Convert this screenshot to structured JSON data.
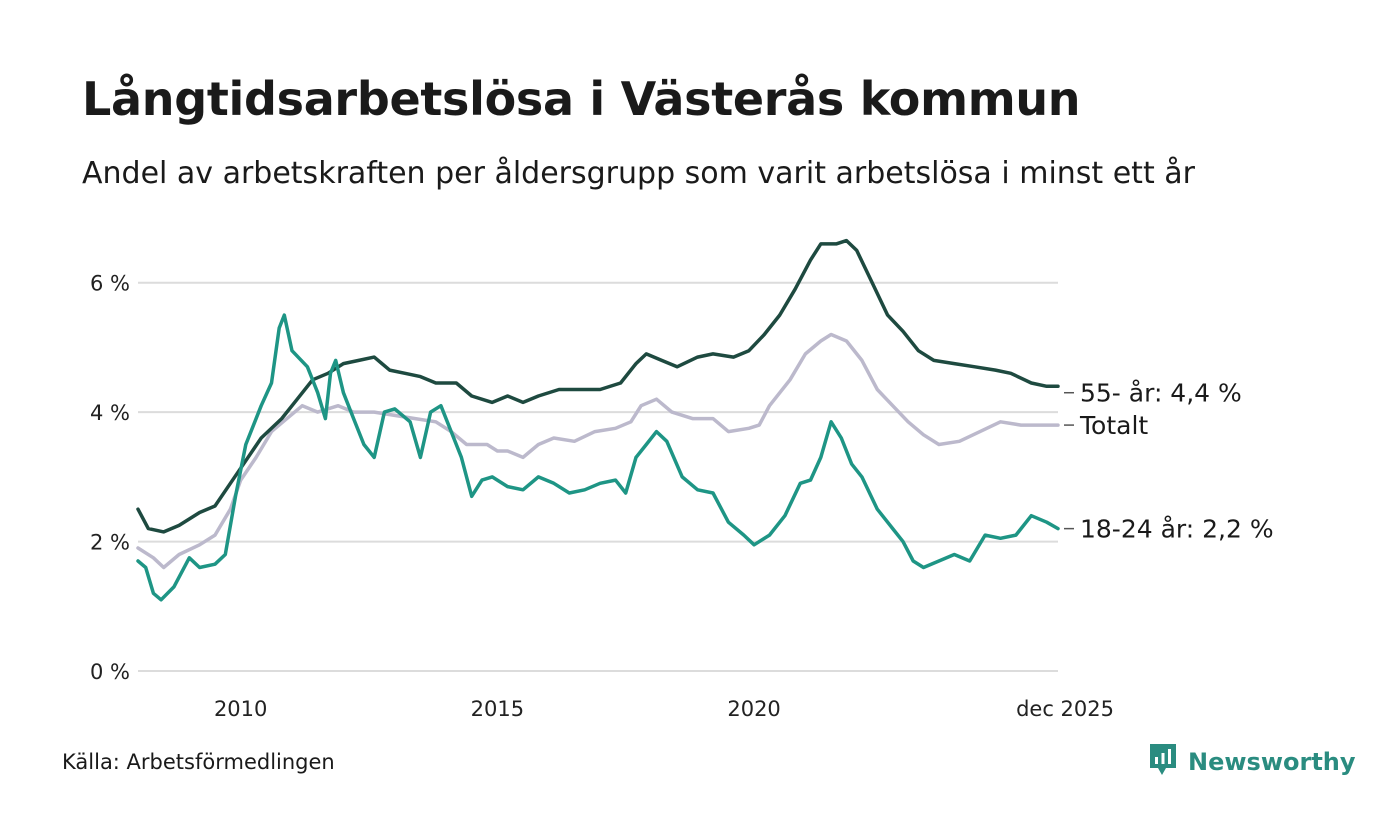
{
  "title": "Långtidsarbetslösa i Västerås kommun",
  "subtitle": "Andel av arbetskraften per åldersgrupp som varit arbetslösa i minst ett år",
  "source": "Källa: Arbetsförmedlingen",
  "brand": {
    "name": "Newsworthy",
    "icon": "newsworthy-logo-icon",
    "color": "#2a8c80"
  },
  "chart_data": {
    "type": "line",
    "title": "Långtidsarbetslösa i Västerås kommun",
    "xlabel": "",
    "ylabel": "",
    "ylim": [
      0,
      7
    ],
    "xlim": [
      2008.0,
      2025.92
    ],
    "y_ticks": [
      {
        "value": 0,
        "label": "0 %"
      },
      {
        "value": 2,
        "label": "2 %"
      },
      {
        "value": 4,
        "label": "4 %"
      },
      {
        "value": 6,
        "label": "6 %"
      }
    ],
    "x_ticks": [
      {
        "value": 2010,
        "label": "2010"
      },
      {
        "value": 2015,
        "label": "2015"
      },
      {
        "value": 2020,
        "label": "2020"
      },
      {
        "value": 2025.92,
        "label": "dec 2025"
      }
    ],
    "grid": true,
    "series": [
      {
        "name": "Totalt",
        "end_label": "Totalt",
        "color": "#bcb9cc",
        "points": [
          [
            2008.0,
            1.9
          ],
          [
            2008.3,
            1.75
          ],
          [
            2008.5,
            1.6
          ],
          [
            2008.8,
            1.8
          ],
          [
            2009.2,
            1.95
          ],
          [
            2009.5,
            2.1
          ],
          [
            2009.8,
            2.5
          ],
          [
            2010.0,
            2.95
          ],
          [
            2010.3,
            3.3
          ],
          [
            2010.6,
            3.7
          ],
          [
            2010.9,
            3.9
          ],
          [
            2011.2,
            4.1
          ],
          [
            2011.5,
            4.0
          ],
          [
            2011.9,
            4.1
          ],
          [
            2012.2,
            4.0
          ],
          [
            2012.6,
            4.0
          ],
          [
            2013.0,
            3.95
          ],
          [
            2013.4,
            3.9
          ],
          [
            2013.8,
            3.85
          ],
          [
            2014.1,
            3.7
          ],
          [
            2014.4,
            3.5
          ],
          [
            2014.8,
            3.5
          ],
          [
            2015.0,
            3.4
          ],
          [
            2015.2,
            3.4
          ],
          [
            2015.5,
            3.3
          ],
          [
            2015.8,
            3.5
          ],
          [
            2016.1,
            3.6
          ],
          [
            2016.5,
            3.55
          ],
          [
            2016.9,
            3.7
          ],
          [
            2017.3,
            3.75
          ],
          [
            2017.6,
            3.85
          ],
          [
            2017.8,
            4.1
          ],
          [
            2018.1,
            4.2
          ],
          [
            2018.4,
            4.0
          ],
          [
            2018.8,
            3.9
          ],
          [
            2019.2,
            3.9
          ],
          [
            2019.5,
            3.7
          ],
          [
            2019.9,
            3.75
          ],
          [
            2020.1,
            3.8
          ],
          [
            2020.3,
            4.1
          ],
          [
            2020.7,
            4.5
          ],
          [
            2021.0,
            4.9
          ],
          [
            2021.3,
            5.1
          ],
          [
            2021.5,
            5.2
          ],
          [
            2021.8,
            5.1
          ],
          [
            2022.1,
            4.8
          ],
          [
            2022.4,
            4.35
          ],
          [
            2022.7,
            4.1
          ],
          [
            2023.0,
            3.85
          ],
          [
            2023.3,
            3.65
          ],
          [
            2023.6,
            3.5
          ],
          [
            2024.0,
            3.55
          ],
          [
            2024.4,
            3.7
          ],
          [
            2024.8,
            3.85
          ],
          [
            2025.2,
            3.8
          ],
          [
            2025.5,
            3.8
          ],
          [
            2025.92,
            3.8
          ]
        ]
      },
      {
        "name": "55- år",
        "end_label": "55- år: 4,4 %",
        "color": "#1e4a40",
        "points": [
          [
            2008.0,
            2.5
          ],
          [
            2008.2,
            2.2
          ],
          [
            2008.5,
            2.15
          ],
          [
            2008.8,
            2.25
          ],
          [
            2009.2,
            2.45
          ],
          [
            2009.5,
            2.55
          ],
          [
            2009.8,
            2.9
          ],
          [
            2010.1,
            3.25
          ],
          [
            2010.4,
            3.6
          ],
          [
            2010.8,
            3.9
          ],
          [
            2011.1,
            4.2
          ],
          [
            2011.4,
            4.5
          ],
          [
            2011.7,
            4.6
          ],
          [
            2012.0,
            4.75
          ],
          [
            2012.3,
            4.8
          ],
          [
            2012.6,
            4.85
          ],
          [
            2012.9,
            4.65
          ],
          [
            2013.2,
            4.6
          ],
          [
            2013.5,
            4.55
          ],
          [
            2013.8,
            4.45
          ],
          [
            2014.2,
            4.45
          ],
          [
            2014.5,
            4.25
          ],
          [
            2014.9,
            4.15
          ],
          [
            2015.2,
            4.25
          ],
          [
            2015.5,
            4.15
          ],
          [
            2015.8,
            4.25
          ],
          [
            2016.2,
            4.35
          ],
          [
            2016.6,
            4.35
          ],
          [
            2017.0,
            4.35
          ],
          [
            2017.4,
            4.45
          ],
          [
            2017.7,
            4.75
          ],
          [
            2017.9,
            4.9
          ],
          [
            2018.2,
            4.8
          ],
          [
            2018.5,
            4.7
          ],
          [
            2018.9,
            4.85
          ],
          [
            2019.2,
            4.9
          ],
          [
            2019.6,
            4.85
          ],
          [
            2019.9,
            4.95
          ],
          [
            2020.2,
            5.2
          ],
          [
            2020.5,
            5.5
          ],
          [
            2020.8,
            5.9
          ],
          [
            2021.1,
            6.35
          ],
          [
            2021.3,
            6.6
          ],
          [
            2021.6,
            6.6
          ],
          [
            2021.8,
            6.65
          ],
          [
            2022.0,
            6.5
          ],
          [
            2022.3,
            6.0
          ],
          [
            2022.6,
            5.5
          ],
          [
            2022.9,
            5.25
          ],
          [
            2023.2,
            4.95
          ],
          [
            2023.5,
            4.8
          ],
          [
            2023.9,
            4.75
          ],
          [
            2024.3,
            4.7
          ],
          [
            2024.7,
            4.65
          ],
          [
            2025.0,
            4.6
          ],
          [
            2025.4,
            4.45
          ],
          [
            2025.7,
            4.4
          ],
          [
            2025.92,
            4.4
          ]
        ]
      },
      {
        "name": "18-24 år",
        "end_label": "18-24 år: 2,2 %",
        "color": "#1e9585",
        "points": [
          [
            2008.0,
            1.7
          ],
          [
            2008.15,
            1.6
          ],
          [
            2008.3,
            1.2
          ],
          [
            2008.45,
            1.1
          ],
          [
            2008.7,
            1.3
          ],
          [
            2009.0,
            1.75
          ],
          [
            2009.2,
            1.6
          ],
          [
            2009.5,
            1.65
          ],
          [
            2009.7,
            1.8
          ],
          [
            2009.9,
            2.7
          ],
          [
            2010.1,
            3.5
          ],
          [
            2010.4,
            4.1
          ],
          [
            2010.6,
            4.45
          ],
          [
            2010.75,
            5.3
          ],
          [
            2010.85,
            5.5
          ],
          [
            2011.0,
            4.95
          ],
          [
            2011.3,
            4.7
          ],
          [
            2011.5,
            4.3
          ],
          [
            2011.65,
            3.9
          ],
          [
            2011.75,
            4.6
          ],
          [
            2011.85,
            4.8
          ],
          [
            2012.0,
            4.3
          ],
          [
            2012.2,
            3.9
          ],
          [
            2012.4,
            3.5
          ],
          [
            2012.6,
            3.3
          ],
          [
            2012.8,
            4.0
          ],
          [
            2013.0,
            4.05
          ],
          [
            2013.3,
            3.85
          ],
          [
            2013.5,
            3.3
          ],
          [
            2013.7,
            4.0
          ],
          [
            2013.9,
            4.1
          ],
          [
            2014.1,
            3.7
          ],
          [
            2014.3,
            3.3
          ],
          [
            2014.5,
            2.7
          ],
          [
            2014.7,
            2.95
          ],
          [
            2014.9,
            3.0
          ],
          [
            2015.2,
            2.85
          ],
          [
            2015.5,
            2.8
          ],
          [
            2015.8,
            3.0
          ],
          [
            2016.1,
            2.9
          ],
          [
            2016.4,
            2.75
          ],
          [
            2016.7,
            2.8
          ],
          [
            2017.0,
            2.9
          ],
          [
            2017.3,
            2.95
          ],
          [
            2017.5,
            2.75
          ],
          [
            2017.7,
            3.3
          ],
          [
            2017.9,
            3.5
          ],
          [
            2018.1,
            3.7
          ],
          [
            2018.3,
            3.55
          ],
          [
            2018.6,
            3.0
          ],
          [
            2018.9,
            2.8
          ],
          [
            2019.2,
            2.75
          ],
          [
            2019.5,
            2.3
          ],
          [
            2019.8,
            2.1
          ],
          [
            2020.0,
            1.95
          ],
          [
            2020.3,
            2.1
          ],
          [
            2020.6,
            2.4
          ],
          [
            2020.9,
            2.9
          ],
          [
            2021.1,
            2.95
          ],
          [
            2021.3,
            3.3
          ],
          [
            2021.5,
            3.85
          ],
          [
            2021.7,
            3.6
          ],
          [
            2021.9,
            3.2
          ],
          [
            2022.1,
            3.0
          ],
          [
            2022.4,
            2.5
          ],
          [
            2022.7,
            2.2
          ],
          [
            2022.9,
            2.0
          ],
          [
            2023.1,
            1.7
          ],
          [
            2023.3,
            1.6
          ],
          [
            2023.6,
            1.7
          ],
          [
            2023.9,
            1.8
          ],
          [
            2024.2,
            1.7
          ],
          [
            2024.5,
            2.1
          ],
          [
            2024.8,
            2.05
          ],
          [
            2025.1,
            2.1
          ],
          [
            2025.4,
            2.4
          ],
          [
            2025.7,
            2.3
          ],
          [
            2025.92,
            2.2
          ]
        ]
      }
    ]
  }
}
